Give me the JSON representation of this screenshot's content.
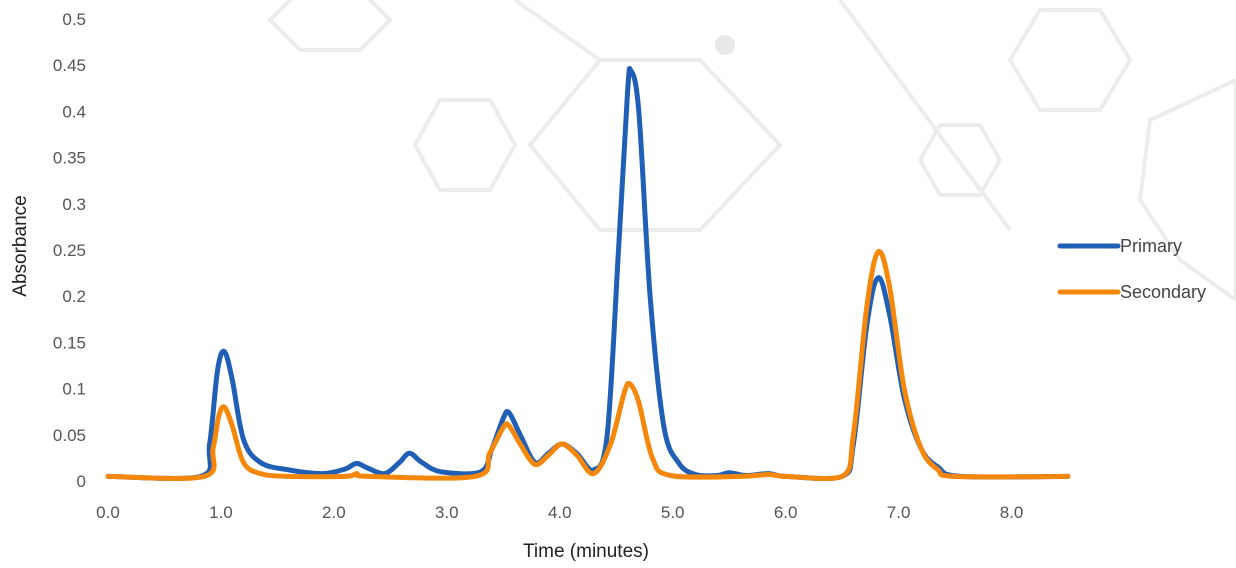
{
  "chart_data": {
    "type": "line",
    "xlabel": "Time (minutes)",
    "ylabel": "Absorbance",
    "xlim": [
      0,
      8.5
    ],
    "ylim": [
      0,
      0.5
    ],
    "x_ticks": [
      "0.0",
      "1.0",
      "2.0",
      "3.0",
      "4.0",
      "5.0",
      "6.0",
      "7.0",
      "8.0"
    ],
    "y_ticks": [
      "0",
      "0.05",
      "0.1",
      "0.15",
      "0.2",
      "0.25",
      "0.3",
      "0.35",
      "0.4",
      "0.45",
      "0.5"
    ],
    "legend_position": "right",
    "grid": false,
    "series": [
      {
        "name": "Primary",
        "color": "#1f5fb5",
        "points": [
          [
            0.0,
            0.005
          ],
          [
            0.82,
            0.005
          ],
          [
            0.9,
            0.04
          ],
          [
            0.97,
            0.12
          ],
          [
            1.03,
            0.14
          ],
          [
            1.1,
            0.11
          ],
          [
            1.2,
            0.045
          ],
          [
            1.35,
            0.02
          ],
          [
            1.6,
            0.012
          ],
          [
            1.9,
            0.008
          ],
          [
            2.1,
            0.013
          ],
          [
            2.2,
            0.019
          ],
          [
            2.3,
            0.014
          ],
          [
            2.45,
            0.008
          ],
          [
            2.58,
            0.02
          ],
          [
            2.67,
            0.03
          ],
          [
            2.78,
            0.02
          ],
          [
            2.95,
            0.01
          ],
          [
            3.3,
            0.01
          ],
          [
            3.4,
            0.035
          ],
          [
            3.5,
            0.068
          ],
          [
            3.55,
            0.074
          ],
          [
            3.65,
            0.05
          ],
          [
            3.78,
            0.02
          ],
          [
            3.9,
            0.03
          ],
          [
            4.02,
            0.04
          ],
          [
            4.15,
            0.03
          ],
          [
            4.3,
            0.012
          ],
          [
            4.42,
            0.05
          ],
          [
            4.52,
            0.25
          ],
          [
            4.6,
            0.42
          ],
          [
            4.63,
            0.444
          ],
          [
            4.7,
            0.4
          ],
          [
            4.8,
            0.2
          ],
          [
            4.92,
            0.06
          ],
          [
            5.05,
            0.02
          ],
          [
            5.2,
            0.007
          ],
          [
            5.4,
            0.006
          ],
          [
            5.5,
            0.009
          ],
          [
            5.65,
            0.006
          ],
          [
            5.85,
            0.008
          ],
          [
            6.0,
            0.005
          ],
          [
            6.5,
            0.005
          ],
          [
            6.6,
            0.04
          ],
          [
            6.72,
            0.17
          ],
          [
            6.82,
            0.22
          ],
          [
            6.92,
            0.18
          ],
          [
            7.05,
            0.09
          ],
          [
            7.2,
            0.035
          ],
          [
            7.35,
            0.015
          ],
          [
            7.55,
            0.005
          ],
          [
            8.5,
            0.005
          ]
        ]
      },
      {
        "name": "Secondary",
        "color": "#f5870a",
        "points": [
          [
            0.0,
            0.005
          ],
          [
            0.85,
            0.005
          ],
          [
            0.93,
            0.035
          ],
          [
            0.98,
            0.07
          ],
          [
            1.03,
            0.08
          ],
          [
            1.1,
            0.06
          ],
          [
            1.2,
            0.02
          ],
          [
            1.35,
            0.008
          ],
          [
            1.6,
            0.005
          ],
          [
            2.1,
            0.005
          ],
          [
            2.2,
            0.008
          ],
          [
            2.3,
            0.005
          ],
          [
            3.25,
            0.005
          ],
          [
            3.38,
            0.03
          ],
          [
            3.5,
            0.058
          ],
          [
            3.55,
            0.06
          ],
          [
            3.65,
            0.04
          ],
          [
            3.78,
            0.018
          ],
          [
            3.9,
            0.028
          ],
          [
            4.02,
            0.04
          ],
          [
            4.15,
            0.028
          ],
          [
            4.3,
            0.008
          ],
          [
            4.45,
            0.04
          ],
          [
            4.57,
            0.095
          ],
          [
            4.62,
            0.105
          ],
          [
            4.7,
            0.085
          ],
          [
            4.82,
            0.025
          ],
          [
            4.98,
            0.006
          ],
          [
            5.6,
            0.005
          ],
          [
            5.85,
            0.007
          ],
          [
            6.0,
            0.005
          ],
          [
            6.5,
            0.005
          ],
          [
            6.6,
            0.05
          ],
          [
            6.72,
            0.19
          ],
          [
            6.82,
            0.248
          ],
          [
            6.92,
            0.21
          ],
          [
            7.05,
            0.1
          ],
          [
            7.2,
            0.035
          ],
          [
            7.35,
            0.012
          ],
          [
            7.5,
            0.005
          ],
          [
            8.5,
            0.005
          ]
        ]
      }
    ]
  }
}
